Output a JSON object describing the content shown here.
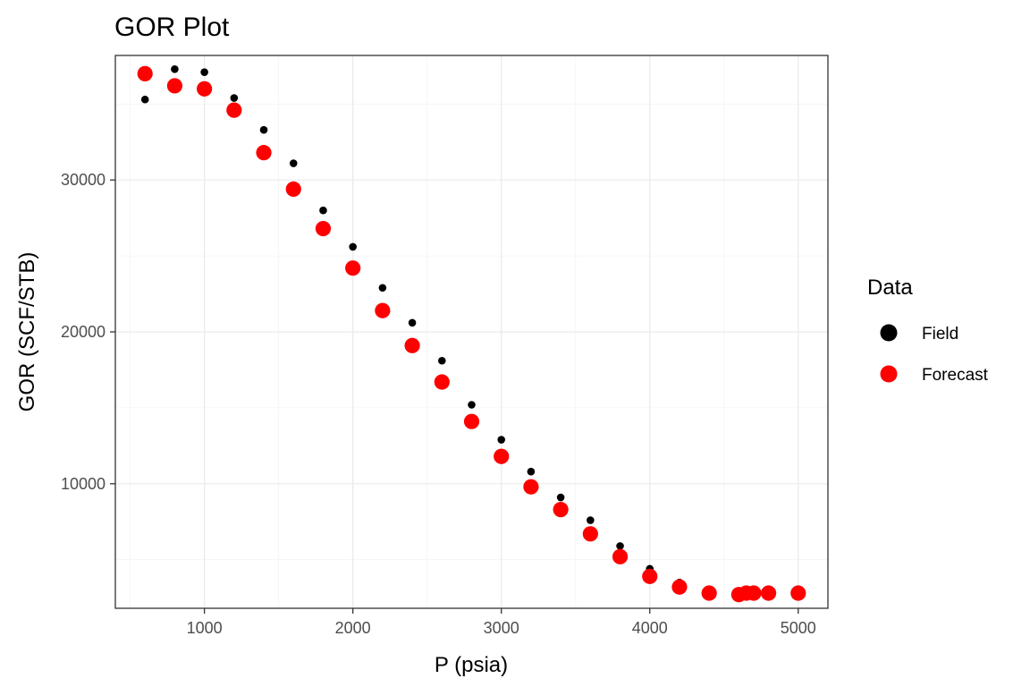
{
  "chart_data": {
    "type": "scatter",
    "title": "GOR Plot",
    "xlabel": "P (psia)",
    "ylabel": "GOR (SCF/STB)",
    "xlim": [
      400,
      5200
    ],
    "ylim": [
      1800,
      38200
    ],
    "x_ticks": [
      1000,
      2000,
      3000,
      4000,
      5000
    ],
    "x_tick_labels": [
      "1000",
      "2000",
      "3000",
      "4000",
      "5000"
    ],
    "y_ticks": [
      10000,
      20000,
      30000
    ],
    "y_tick_labels": [
      "10000",
      "20000",
      "30000"
    ],
    "grid": true,
    "legend": {
      "title": "Data",
      "position": "right"
    },
    "series": [
      {
        "name": "Field",
        "color": "#000000",
        "marker": "small-dot",
        "x": [
          600,
          800,
          1000,
          1200,
          1400,
          1600,
          1800,
          2000,
          2200,
          2400,
          2600,
          2800,
          3000,
          3200,
          3400,
          3600,
          3800,
          4000,
          4200,
          4400,
          4600,
          4650,
          4700,
          4800,
          5000
        ],
        "y": [
          35300,
          37300,
          37100,
          35400,
          33300,
          31100,
          28000,
          25600,
          22900,
          20600,
          18100,
          15200,
          12900,
          10800,
          9100,
          7600,
          5900,
          4400,
          3500,
          2900,
          2700,
          2800,
          2850,
          2850,
          2850
        ]
      },
      {
        "name": "Forecast",
        "color": "#ff0000",
        "marker": "large-dot",
        "x": [
          600,
          800,
          1000,
          1200,
          1400,
          1600,
          1800,
          2000,
          2200,
          2400,
          2600,
          2800,
          3000,
          3200,
          3400,
          3600,
          3800,
          4000,
          4200,
          4400,
          4600,
          4650,
          4700,
          4800,
          5000
        ],
        "y": [
          37000,
          36200,
          36000,
          34600,
          31800,
          29400,
          26800,
          24200,
          21400,
          19100,
          16700,
          14100,
          11800,
          9800,
          8300,
          6700,
          5200,
          3900,
          3200,
          2800,
          2700,
          2800,
          2800,
          2800,
          2800
        ]
      }
    ]
  }
}
